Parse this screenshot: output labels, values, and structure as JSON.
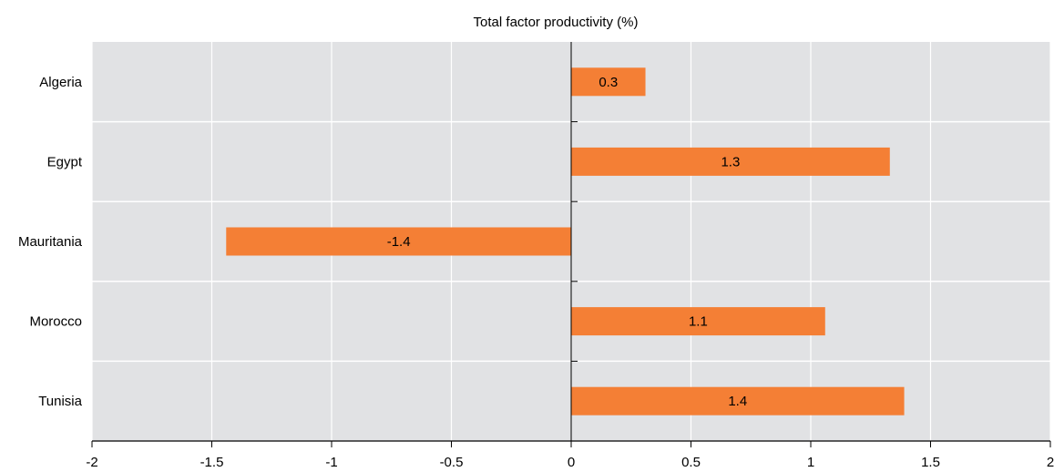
{
  "chart_data": {
    "type": "bar",
    "orientation": "horizontal",
    "title": "Total factor productivity (%)",
    "categories": [
      "Algeria",
      "Egypt",
      "Mauritania",
      "Morocco",
      "Tunisia"
    ],
    "values": [
      0.31,
      1.33,
      -1.44,
      1.06,
      1.39
    ],
    "data_labels": [
      "0.3",
      "1.3",
      "-1.4",
      "1.1",
      "1.4"
    ],
    "xlim": [
      -2,
      2
    ],
    "xticks": [
      -2,
      -1.5,
      -1,
      -0.5,
      0,
      0.5,
      1,
      1.5,
      2
    ],
    "xtick_labels": [
      "-2",
      "-1.5",
      "-1",
      "-0.5",
      "0",
      "0.5",
      "1",
      "1.5",
      "2"
    ],
    "grid": true,
    "colors": {
      "bar": "#f47f35",
      "plot_background": "#e1e2e4",
      "grid": "#ffffff",
      "axis": "#000000"
    }
  }
}
